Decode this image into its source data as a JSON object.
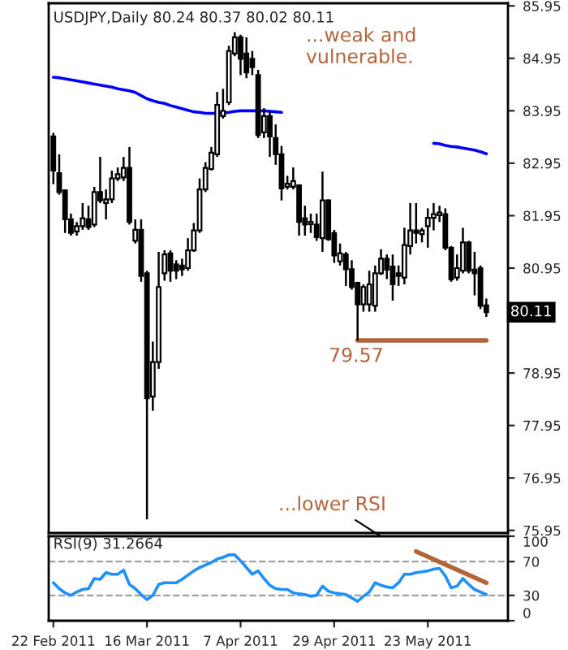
{
  "chart_data": [
    {
      "type": "candlestick",
      "title": "USDJPY,Daily 80.24 80.37 80.02 80.11",
      "categories": [
        null,
        null,
        null,
        null,
        null,
        null,
        null,
        null,
        null,
        null,
        null,
        null,
        null,
        null,
        null,
        null,
        null,
        null,
        null,
        null,
        null,
        null,
        null,
        null,
        null,
        null,
        null,
        null,
        null,
        null,
        null,
        null,
        null,
        null,
        null,
        null,
        null,
        null,
        null,
        null,
        null,
        null,
        null,
        null,
        null,
        null,
        null,
        null,
        null,
        null,
        null,
        null,
        null,
        null,
        null,
        null,
        null,
        null,
        null,
        null,
        null,
        null,
        null,
        null,
        null,
        null,
        null,
        null,
        null,
        null,
        null,
        null,
        null,
        null,
        null
      ],
      "ohlc": [
        [
          83.46,
          83.53,
          82.55,
          82.81
        ],
        [
          82.76,
          83.12,
          82.35,
          82.4
        ],
        [
          82.43,
          82.45,
          81.62,
          81.88
        ],
        [
          81.88,
          81.99,
          81.57,
          81.62
        ],
        [
          81.65,
          81.83,
          81.57,
          81.75
        ],
        [
          81.75,
          82.19,
          81.68,
          81.9
        ],
        [
          81.88,
          82.14,
          81.68,
          81.73
        ],
        [
          81.78,
          82.5,
          81.73,
          82.4
        ],
        [
          82.4,
          83.07,
          82.19,
          82.24
        ],
        [
          82.19,
          82.45,
          81.88,
          82.26
        ],
        [
          82.26,
          82.81,
          82.19,
          82.66
        ],
        [
          82.66,
          82.87,
          82.61,
          82.74
        ],
        [
          82.68,
          83.07,
          82.61,
          82.86
        ],
        [
          82.86,
          83.26,
          81.78,
          81.83
        ],
        [
          81.47,
          81.88,
          81.42,
          81.68
        ],
        [
          81.68,
          81.88,
          80.69,
          80.8
        ],
        [
          80.85,
          80.9,
          76.16,
          78.47
        ],
        [
          78.5,
          79.55,
          78.23,
          79.16
        ],
        [
          79.16,
          81.26,
          79.03,
          80.59
        ],
        [
          80.85,
          81.29,
          80.71,
          81.21
        ],
        [
          81.23,
          81.29,
          80.69,
          80.9
        ],
        [
          81.02,
          81.1,
          80.74,
          80.9
        ],
        [
          81.0,
          81.13,
          80.8,
          80.93
        ],
        [
          80.95,
          81.52,
          80.9,
          81.29
        ],
        [
          81.29,
          81.81,
          81.26,
          81.67
        ],
        [
          81.67,
          82.66,
          81.62,
          82.45
        ],
        [
          82.45,
          82.97,
          82.4,
          82.86
        ],
        [
          82.84,
          83.26,
          82.81,
          83.15
        ],
        [
          83.12,
          84.31,
          83.07,
          84.06
        ],
        [
          83.85,
          84.37,
          83.8,
          83.95
        ],
        [
          84.11,
          85.19,
          84.06,
          85.09
        ],
        [
          85.04,
          85.45,
          84.99,
          85.35
        ],
        [
          85.35,
          85.4,
          84.63,
          84.94
        ],
        [
          85.04,
          85.35,
          84.57,
          84.68
        ],
        [
          84.94,
          85.09,
          84.63,
          84.78
        ],
        [
          84.63,
          84.73,
          83.43,
          83.49
        ],
        [
          83.54,
          84.0,
          83.43,
          83.85
        ],
        [
          83.85,
          83.95,
          83.07,
          83.46
        ],
        [
          83.43,
          83.69,
          82.92,
          83.12
        ],
        [
          83.12,
          83.28,
          82.24,
          82.47
        ],
        [
          82.5,
          82.71,
          82.45,
          82.56
        ],
        [
          82.5,
          82.87,
          82.45,
          82.61
        ],
        [
          82.53,
          82.55,
          81.57,
          81.83
        ],
        [
          81.9,
          82.14,
          81.57,
          81.78
        ],
        [
          81.79,
          81.99,
          81.62,
          81.83
        ],
        [
          81.78,
          81.99,
          81.47,
          81.54
        ],
        [
          81.52,
          82.79,
          81.26,
          82.24
        ],
        [
          82.24,
          82.26,
          81.47,
          81.5
        ],
        [
          81.62,
          81.68,
          81.05,
          81.19
        ],
        [
          81.08,
          81.42,
          81.0,
          81.23
        ],
        [
          81.21,
          81.26,
          80.61,
          80.93
        ],
        [
          80.93,
          81.1,
          80.54,
          80.59
        ],
        [
          80.67,
          80.69,
          79.57,
          80.26
        ],
        [
          80.26,
          80.64,
          80.12,
          80.59
        ],
        [
          80.26,
          80.9,
          80.12,
          80.64
        ],
        [
          80.23,
          81.0,
          80.12,
          80.85
        ],
        [
          80.85,
          81.31,
          80.82,
          81.13
        ],
        [
          81.13,
          81.21,
          80.74,
          80.92
        ],
        [
          80.98,
          81.21,
          80.33,
          80.64
        ],
        [
          80.85,
          81.0,
          80.61,
          80.8
        ],
        [
          80.77,
          81.72,
          80.64,
          81.39
        ],
        [
          81.37,
          82.19,
          81.21,
          81.67
        ],
        [
          81.67,
          82.19,
          81.42,
          81.62
        ],
        [
          81.6,
          81.72,
          81.44,
          81.67
        ],
        [
          81.75,
          82.09,
          81.34,
          81.91
        ],
        [
          81.91,
          82.19,
          81.67,
          81.98
        ],
        [
          81.96,
          82.14,
          81.83,
          82.01
        ],
        [
          81.98,
          82.09,
          81.29,
          81.34
        ],
        [
          81.34,
          81.37,
          80.69,
          80.74
        ],
        [
          80.77,
          81.21,
          80.71,
          80.95
        ],
        [
          80.9,
          81.72,
          80.85,
          81.44
        ],
        [
          81.44,
          81.47,
          80.85,
          80.9
        ],
        [
          80.92,
          81.26,
          80.43,
          80.85
        ],
        [
          80.95,
          81.0,
          80.17,
          80.23
        ],
        [
          80.24,
          80.37,
          80.02,
          80.11
        ]
      ],
      "series": [
        {
          "type": "line",
          "color": "#0000ff",
          "values": [
            84.59,
            84.58,
            84.56,
            84.54,
            84.52,
            84.5,
            84.48,
            84.46,
            84.44,
            84.42,
            84.4,
            84.37,
            84.35,
            84.33,
            84.3,
            84.24,
            84.18,
            84.14,
            84.11,
            84.09,
            84.05,
            84.02,
            83.99,
            83.96,
            83.93,
            83.92,
            83.9,
            83.9,
            83.9,
            83.9,
            83.92,
            83.94,
            83.95,
            83.95,
            83.95,
            83.95,
            83.95,
            83.94,
            83.93,
            83.92,
            null,
            null,
            null,
            null,
            null,
            null,
            null,
            null,
            null,
            null,
            null,
            null,
            null,
            null,
            null,
            null,
            null,
            null,
            null,
            null,
            null,
            null,
            null,
            null,
            null,
            83.33,
            83.32,
            83.29,
            83.27,
            83.26,
            83.24,
            83.22,
            83.2,
            83.17,
            83.13
          ]
        },
        {
          "type": "line",
          "color": "#b4643a",
          "values": [
            null,
            null,
            null,
            null,
            null,
            null,
            null,
            null,
            null,
            null,
            null,
            null,
            null,
            null,
            null,
            null,
            null,
            null,
            null,
            null,
            null,
            null,
            null,
            null,
            null,
            null,
            null,
            null,
            null,
            null,
            null,
            null,
            null,
            null,
            null,
            null,
            null,
            null,
            null,
            null,
            null,
            null,
            null,
            null,
            null,
            null,
            null,
            null,
            null,
            null,
            null,
            null,
            79.57,
            79.57,
            79.57,
            79.57,
            79.57,
            79.57,
            79.57,
            79.57,
            79.57,
            79.57,
            79.57,
            79.57,
            79.57,
            79.57,
            79.57,
            79.57,
            79.57,
            79.57,
            79.57,
            79.57,
            79.57,
            79.57,
            79.57
          ]
        }
      ],
      "ylim": [
        75.9,
        86.0
      ],
      "yticks": [
        75.95,
        76.95,
        77.95,
        78.95,
        80.95,
        81.95,
        82.95,
        83.95,
        84.95,
        85.95
      ],
      "annotations": [
        "...weak and\nvulnerable.",
        {
          "text": "79.57",
          "y": 79.57
        },
        "80.11",
        "...lower RSI"
      ]
    },
    {
      "type": "line",
      "title": "RSI(9) 31.2664",
      "categories": [
        "22 Feb 2011",
        null,
        null,
        null,
        null,
        null,
        null,
        null,
        null,
        null,
        null,
        null,
        null,
        null,
        null,
        null,
        "16 Mar 2011",
        null,
        null,
        null,
        null,
        null,
        null,
        null,
        null,
        null,
        null,
        null,
        null,
        null,
        null,
        null,
        "7 Apr 2011",
        null,
        null,
        null,
        null,
        null,
        null,
        null,
        null,
        null,
        null,
        null,
        null,
        null,
        null,
        null,
        "29 Apr 2011",
        null,
        null,
        null,
        null,
        null,
        null,
        null,
        null,
        null,
        null,
        null,
        null,
        null,
        null,
        null,
        "23 May 2011",
        null,
        null,
        null,
        null,
        null,
        null,
        null,
        null,
        null,
        null
      ],
      "series": [
        {
          "color": "#1e90ff",
          "values": [
            45,
            38,
            33,
            30,
            34,
            37,
            38,
            50,
            49,
            57,
            55,
            55,
            60,
            43,
            38,
            31,
            25,
            30,
            43,
            45,
            45,
            45,
            49,
            54,
            59,
            63,
            66,
            69,
            73,
            75,
            78,
            78,
            71,
            63,
            55,
            59,
            50,
            42,
            38,
            37,
            37,
            33,
            32,
            31,
            29,
            30,
            41,
            35,
            33,
            32,
            31,
            27,
            23,
            29,
            34,
            45,
            42,
            40,
            39,
            45,
            55,
            55,
            57,
            58,
            59,
            61,
            62,
            53,
            39,
            41,
            50,
            43,
            37,
            34,
            31
          ]
        },
        {
          "color": "#b4643a",
          "values": [
            null,
            null,
            null,
            null,
            null,
            null,
            null,
            null,
            null,
            null,
            null,
            null,
            null,
            null,
            null,
            null,
            null,
            null,
            null,
            null,
            null,
            null,
            null,
            null,
            null,
            null,
            null,
            null,
            null,
            null,
            null,
            null,
            null,
            null,
            null,
            null,
            null,
            null,
            null,
            null,
            null,
            null,
            null,
            null,
            null,
            null,
            null,
            null,
            null,
            null,
            null,
            null,
            null,
            null,
            null,
            null,
            null,
            null,
            null,
            null,
            null,
            null,
            82,
            null,
            null,
            null,
            null,
            null,
            null,
            null,
            null,
            null,
            null,
            null,
            45
          ]
        }
      ],
      "ylim": [
        0,
        100
      ],
      "yticks": [
        0,
        30,
        70,
        100
      ],
      "ref_lines": [
        {
          "axis": "y",
          "value": 30,
          "color": "#a0a0a0",
          "line_style": "dashed"
        },
        {
          "axis": "y",
          "value": 70,
          "color": "#a0a0a0",
          "line_style": "dashed"
        }
      ]
    }
  ]
}
